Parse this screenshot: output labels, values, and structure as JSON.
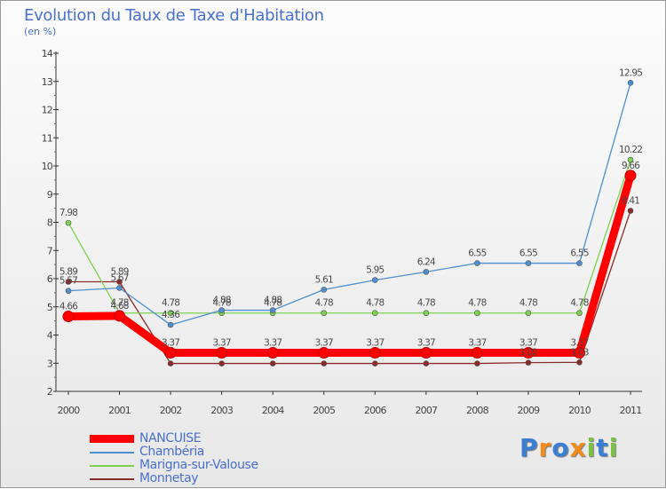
{
  "chart_data": {
    "type": "line",
    "title": "Evolution du Taux de Taxe d'Habitation",
    "subtitle": "(en %)",
    "xlabel": "",
    "ylabel": "",
    "ylim": [
      2,
      14
    ],
    "yticks": [
      "2",
      "3",
      "4",
      "5",
      "6",
      "7",
      "8",
      "9",
      "10",
      "11",
      "12",
      "13",
      "14"
    ],
    "categories": [
      "2000",
      "2001",
      "2002",
      "2003",
      "2004",
      "2005",
      "2006",
      "2007",
      "2008",
      "2009",
      "2010",
      "2011"
    ],
    "series": [
      {
        "name": "NANCUISE",
        "color": "#ff0000",
        "values": [
          4.66,
          4.68,
          3.37,
          3.37,
          3.37,
          3.37,
          3.37,
          3.37,
          3.37,
          3.37,
          3.37,
          9.66
        ],
        "labels": [
          "4.66",
          "4.68",
          "3.37",
          "3.37",
          "3.37",
          "3.37",
          "3.37",
          "3.37",
          "3.37",
          "3.37",
          "3.37",
          "9.66"
        ]
      },
      {
        "name": "Chambéria",
        "color": "#4d8fd1",
        "values": [
          5.57,
          5.67,
          4.36,
          4.88,
          4.88,
          5.61,
          5.95,
          6.24,
          6.55,
          6.55,
          6.55,
          12.95
        ],
        "labels": [
          "5.57",
          "5.67",
          "4.36",
          "4.88",
          "4.88",
          "5.61",
          "5.95",
          "6.24",
          "6.55",
          "6.55",
          "6.55",
          "12.95"
        ]
      },
      {
        "name": "Marigna-sur-Valouse",
        "color": "#7dd34f",
        "values": [
          7.98,
          4.78,
          4.78,
          4.78,
          4.78,
          4.78,
          4.78,
          4.78,
          4.78,
          4.78,
          4.78,
          10.22
        ],
        "labels": [
          "7.98",
          "4.78",
          "4.78",
          "4.78",
          "4.78",
          "4.78",
          "4.78",
          "4.78",
          "4.78",
          "4.78",
          "4.78",
          "10.22"
        ]
      },
      {
        "name": "Monnetay",
        "color": "#8b2c2c",
        "values": [
          5.89,
          5.89,
          2.99,
          2.99,
          2.99,
          2.99,
          2.99,
          2.99,
          2.99,
          3.02,
          3.03,
          8.41
        ],
        "labels": [
          "5.89",
          "5.89",
          "",
          "",
          "",
          "",
          "",
          "",
          "",
          "3.02",
          "3.03",
          "8.41"
        ]
      }
    ],
    "grid": false,
    "legend_position": "bottom-left"
  },
  "logo": {
    "letters": [
      "P",
      "r",
      "o",
      "x",
      "i",
      "t",
      "i"
    ]
  }
}
